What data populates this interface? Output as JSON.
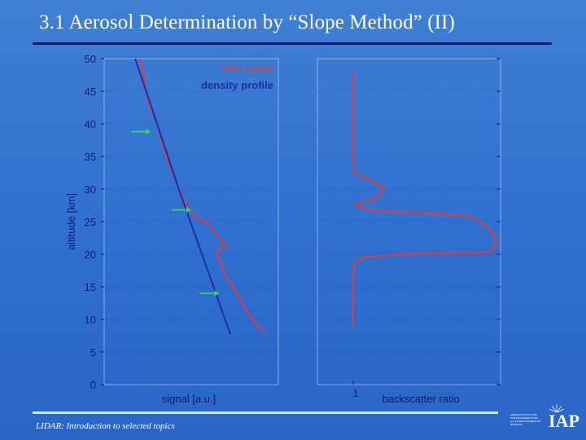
{
  "slide": {
    "title": "3.1 Aerosol Determination by “Slope Method” (II)",
    "footer": "LIDAR: Introduction to selected topics",
    "logo_text": "IAP",
    "logo_small_lines": [
      "LEIBNIZ-INSTITUT FÜR",
      "ATMOSPHÄRENPHYSIK",
      "e.V. AN DER UNIVERSITÄT",
      "ROSTOCK"
    ]
  },
  "colors": {
    "background": "#3476d4",
    "title_rule": "#0f1d6e",
    "lidar": "#e53a3a",
    "density": "#1c2fa6",
    "arrow": "#2edb55",
    "axis_text": "#0f1d6e"
  },
  "chart_data": [
    {
      "type": "line",
      "xlabel": "signal [a.u.]",
      "ylabel": "altitude [km]",
      "ylim": [
        0,
        50
      ],
      "yticks": [
        0,
        5,
        10,
        15,
        20,
        25,
        30,
        35,
        40,
        45,
        50
      ],
      "grid": "dotted horizontal",
      "legend_position": "top-right",
      "series": [
        {
          "name": "lidar signal",
          "color": "#e53a3a",
          "x": [
            0.58,
            0.64,
            0.72,
            0.85,
            1.0,
            1.12,
            1.25,
            1.35,
            1.52,
            1.62,
            1.73,
            1.8,
            1.96,
            1.84,
            1.82,
            1.94,
            2.13,
            2.28,
            2.46,
            2.6
          ],
          "y": [
            50,
            47,
            43,
            40,
            35,
            32,
            29,
            27,
            25.3,
            25.2,
            24,
            23,
            21.3,
            20.8,
            20,
            17,
            14,
            11.5,
            9,
            8
          ]
        },
        {
          "name": "density profile",
          "color": "#1c2fa6",
          "x": [
            0.5,
            1.2,
            2.03
          ],
          "y": [
            50,
            30,
            7.7
          ]
        }
      ],
      "annotations": [
        {
          "type": "arrow",
          "x": 0.75,
          "y": 38.8
        },
        {
          "type": "arrow",
          "x": 1.4,
          "y": 26.8
        },
        {
          "type": "arrow",
          "x": 1.85,
          "y": 14
        }
      ]
    },
    {
      "type": "line",
      "xlabel": "backscatter ratio",
      "xtick_labels": [
        "1"
      ],
      "ylim": [
        0,
        50
      ],
      "grid": "dotted horizontal",
      "series": [
        {
          "color": "#e53a3a",
          "x": [
            1.0,
            1.0,
            1.0,
            1.02,
            1.1,
            1.38,
            1.86,
            1.66,
            1.06,
            1.3,
            1.85,
            3.2,
            4.3,
            4.8,
            5.0,
            4.9,
            4.5,
            2.8,
            1.3,
            1.05,
            1.0,
            1.0,
            1.0
          ],
          "y": [
            48,
            40,
            35,
            33,
            32.2,
            31.6,
            30.3,
            28.5,
            27.6,
            26.9,
            26.6,
            26.3,
            25.8,
            24,
            22,
            20.4,
            20.2,
            20.1,
            19.6,
            18.8,
            17,
            12,
            9
          ]
        }
      ]
    }
  ]
}
